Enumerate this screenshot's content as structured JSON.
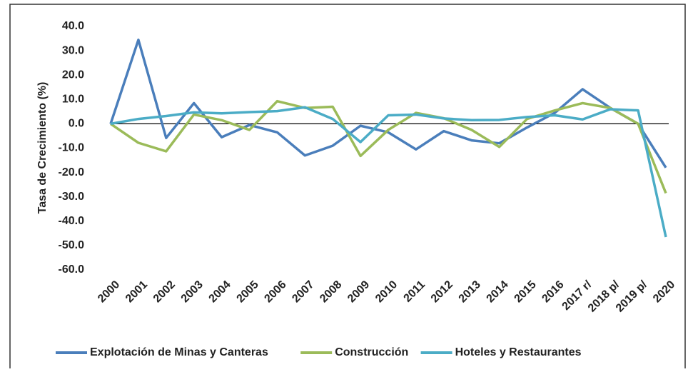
{
  "chart_data": {
    "type": "line",
    "y_label": "Tasa de Crecimiento (%)",
    "categories": [
      "2000",
      "2001",
      "2002",
      "2003",
      "2004",
      "2005",
      "2006",
      "2007",
      "2008",
      "2009",
      "2010",
      "2011",
      "2012",
      "2013",
      "2014",
      "2015",
      "2016",
      "2017 r/",
      "2018 p/",
      "2019 p/",
      "2020"
    ],
    "series": [
      {
        "name": "Explotación de Minas y Canteras",
        "color": "#4a7ebb",
        "values": [
          0,
          34.5,
          -5.8,
          8.5,
          -5.5,
          -0.5,
          -3.5,
          -13,
          -9,
          -0.8,
          -3.5,
          -10.5,
          -3,
          -6.8,
          -8,
          -1.5,
          4.5,
          14.2,
          6.5,
          0,
          -18
        ]
      },
      {
        "name": "Construcción",
        "color": "#9bbb59",
        "values": [
          0,
          -7.8,
          -11.3,
          3.8,
          1.5,
          -2.5,
          9.3,
          6.5,
          7,
          -13.2,
          -2.5,
          4.5,
          2.3,
          -2.5,
          -9.5,
          2,
          5.5,
          8.5,
          6.5,
          0,
          -28.5
        ]
      },
      {
        "name": "Hoteles y Restaurantes",
        "color": "#4bacc6",
        "values": [
          0,
          2,
          3.2,
          4.7,
          4.3,
          4.8,
          5.2,
          6.8,
          2,
          -7.5,
          3.5,
          3.8,
          2.2,
          1.5,
          1.6,
          2.8,
          3.5,
          1.8,
          6,
          5.5,
          -46.5
        ]
      }
    ],
    "ylim": [
      -60,
      40
    ],
    "yticks": [
      {
        "value": 40,
        "label": "40.0"
      },
      {
        "value": 30,
        "label": "30.0"
      },
      {
        "value": 20,
        "label": "20.0"
      },
      {
        "value": 10,
        "label": "10.0"
      },
      {
        "value": 0,
        "label": "0.0"
      },
      {
        "value": -10,
        "label": "-10.0"
      },
      {
        "value": -20,
        "label": "-20.0"
      },
      {
        "value": -30,
        "label": "-30.0"
      },
      {
        "value": -40,
        "label": "-40.0"
      },
      {
        "value": -50,
        "label": "-50.0"
      },
      {
        "value": -60,
        "label": "-60.0"
      }
    ],
    "legend": "bottom"
  }
}
